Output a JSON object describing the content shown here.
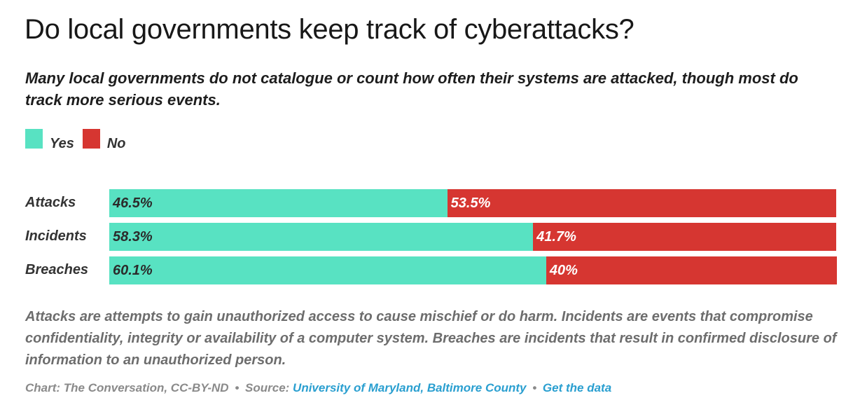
{
  "title": "Do local governments keep track of cyberattacks?",
  "subtitle": "Many local governments do not catalogue or count how often their systems are attacked, though most do track more serious events.",
  "legend": [
    {
      "label": "Yes",
      "color": "#58e2c2"
    },
    {
      "label": "No",
      "color": "#d63631"
    }
  ],
  "notes": "Attacks are attempts to gain unauthorized access to cause mischief or do harm. Incidents are events that compromise confidentiality, integrity or availability of a computer system. Breaches are incidents that result in confirmed disclosure of information to an unauthorized person.",
  "footer": {
    "chart_credit": "Chart: The Conversation, CC-BY-ND",
    "separator": "•",
    "source_prefix": "Source:",
    "source_link": "University of Maryland, Baltimore County",
    "get_data_link": "Get the data"
  },
  "chart_data": {
    "type": "bar",
    "orientation": "horizontal",
    "stacked": true,
    "title": "Do local governments keep track of cyberattacks?",
    "categories": [
      "Attacks",
      "Incidents",
      "Breaches"
    ],
    "series": [
      {
        "name": "Yes",
        "color": "#58e2c2",
        "label_color": "#2b2b2b",
        "values": [
          46.5,
          58.3,
          60.1
        ],
        "labels": [
          "46.5%",
          "58.3%",
          "60.1%"
        ]
      },
      {
        "name": "No",
        "color": "#d63631",
        "label_color": "#ffffff",
        "values": [
          53.5,
          41.7,
          40
        ],
        "labels": [
          "53.5%",
          "41.7%",
          "40%"
        ]
      }
    ],
    "xlim": [
      0,
      100
    ],
    "grid": false,
    "legend_position": "top-left",
    "xlabel": "",
    "ylabel": ""
  }
}
